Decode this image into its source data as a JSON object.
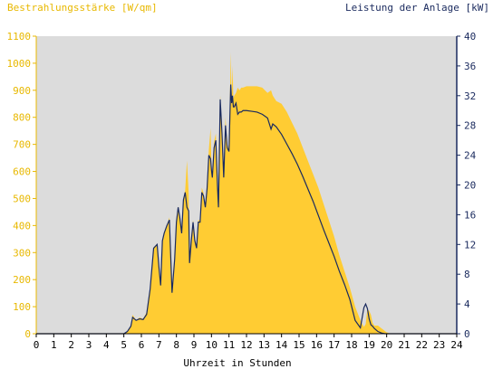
{
  "chart_data": {
    "type": "area",
    "title_left": "Bestrahlungsstärke [W/qm]",
    "title_right": "Leistung der Anlage [kW]",
    "xlabel": "Uhrzeit in Stunden",
    "x_ticks": [
      "0",
      "1",
      "2",
      "3",
      "4",
      "5",
      "6",
      "7",
      "8",
      "9",
      "10",
      "11",
      "12",
      "13",
      "14",
      "15",
      "16",
      "17",
      "18",
      "19",
      "20",
      "21",
      "22",
      "23",
      "24"
    ],
    "y_left_ticks": [
      "0",
      "100",
      "200",
      "300",
      "400",
      "500",
      "600",
      "700",
      "800",
      "900",
      "1000",
      "1100"
    ],
    "y_right_ticks": [
      "0",
      "4",
      "8",
      "12",
      "16",
      "20",
      "24",
      "28",
      "32",
      "36",
      "40"
    ],
    "xlim": [
      0,
      24
    ],
    "ylim_left": [
      0,
      1100
    ],
    "ylim_right": [
      0,
      40
    ],
    "colors": {
      "irradiance": "#ffcc33",
      "power": "#1a2a5e",
      "plot_bg": "#dcdcdc",
      "left_axis_text": "#e8b800",
      "right_axis_text": "#1a2a5e"
    },
    "series": [
      {
        "axis": "left",
        "x": [
          0,
          5.0,
          5.2,
          5.4,
          5.5,
          5.7,
          5.9,
          6.1,
          6.3,
          6.5,
          6.7,
          6.9,
          7.0,
          7.1,
          7.2,
          7.3,
          7.45,
          7.6,
          7.75,
          7.9,
          8.0,
          8.1,
          8.2,
          8.3,
          8.4,
          8.5,
          8.6,
          8.7,
          8.75,
          8.85,
          8.95,
          9.05,
          9.15,
          9.25,
          9.35,
          9.45,
          9.55,
          9.65,
          9.75,
          9.85,
          9.95,
          10.0,
          10.05,
          10.15,
          10.25,
          10.35,
          10.4,
          10.5,
          10.6,
          10.7,
          10.8,
          10.9,
          11.0,
          11.05,
          11.1,
          11.15,
          11.2,
          11.25,
          11.3,
          11.4,
          11.5,
          11.6,
          11.7,
          11.8,
          12.0,
          12.3,
          12.6,
          12.9,
          13.2,
          13.4,
          13.5,
          13.7,
          14.0,
          14.3,
          14.6,
          14.9,
          15.2,
          15.5,
          15.8,
          16.1,
          16.4,
          16.7,
          17.0,
          17.3,
          17.6,
          17.9,
          18.2,
          18.5,
          18.7,
          18.8,
          18.9,
          19.0,
          19.1,
          19.2,
          19.3,
          19.5,
          19.7,
          19.9,
          20.0,
          20.1,
          20.2,
          20.3,
          20.5,
          21,
          24
        ],
        "y": [
          0,
          0,
          10,
          30,
          70,
          50,
          60,
          55,
          80,
          170,
          320,
          330,
          250,
          180,
          340,
          370,
          400,
          430,
          150,
          280,
          420,
          470,
          430,
          380,
          500,
          530,
          640,
          520,
          270,
          360,
          420,
          360,
          320,
          420,
          420,
          540,
          520,
          470,
          560,
          680,
          760,
          620,
          580,
          710,
          740,
          550,
          480,
          880,
          760,
          590,
          800,
          700,
          680,
          850,
          1040,
          880,
          990,
          870,
          880,
          890,
          910,
          900,
          910,
          910,
          915,
          915,
          915,
          910,
          890,
          900,
          880,
          860,
          850,
          820,
          780,
          740,
          690,
          640,
          590,
          540,
          480,
          420,
          360,
          290,
          230,
          170,
          100,
          50,
          25,
          35,
          90,
          85,
          70,
          40,
          30,
          30,
          20,
          10,
          5,
          3,
          0,
          0,
          0,
          0,
          0
        ],
        "name": ""
      },
      {
        "axis": "right",
        "x": [
          0,
          5.0,
          5.2,
          5.4,
          5.5,
          5.7,
          5.9,
          6.1,
          6.3,
          6.5,
          6.7,
          6.9,
          7.0,
          7.1,
          7.2,
          7.3,
          7.45,
          7.6,
          7.75,
          7.9,
          8.0,
          8.1,
          8.2,
          8.3,
          8.4,
          8.5,
          8.6,
          8.7,
          8.75,
          8.85,
          8.95,
          9.05,
          9.15,
          9.25,
          9.35,
          9.45,
          9.55,
          9.65,
          9.75,
          9.85,
          9.95,
          10.0,
          10.05,
          10.15,
          10.25,
          10.35,
          10.4,
          10.5,
          10.6,
          10.7,
          10.8,
          10.9,
          11.0,
          11.05,
          11.1,
          11.15,
          11.2,
          11.25,
          11.3,
          11.4,
          11.5,
          11.6,
          11.7,
          11.8,
          12.0,
          12.3,
          12.6,
          12.9,
          13.2,
          13.4,
          13.5,
          13.7,
          14.0,
          14.3,
          14.6,
          14.9,
          15.2,
          15.5,
          15.8,
          16.1,
          16.4,
          16.7,
          17.0,
          17.3,
          17.6,
          17.9,
          18.2,
          18.5,
          18.7,
          18.8,
          18.9,
          19.0,
          19.1,
          19.2,
          19.3,
          19.5,
          19.7,
          19.9,
          20.0,
          20.1,
          20.2,
          20.3,
          20.5,
          21,
          24
        ],
        "y": [
          0,
          0,
          0.3,
          1.0,
          2.2,
          1.8,
          2.0,
          1.9,
          2.6,
          6.0,
          11.5,
          12.0,
          9.0,
          6.5,
          12.5,
          13.5,
          14.5,
          15.3,
          5.5,
          10.0,
          15.0,
          17.0,
          15.5,
          13.5,
          18.0,
          19.0,
          17.0,
          16.5,
          9.5,
          12.5,
          15.0,
          12.5,
          11.5,
          15.0,
          15.0,
          19.0,
          18.5,
          17.0,
          19.5,
          24.0,
          23.5,
          22.0,
          21.0,
          25.0,
          26.0,
          19.5,
          17.0,
          31.5,
          27.0,
          21.0,
          28.0,
          25.0,
          24.5,
          29.0,
          33.5,
          31.0,
          32.0,
          30.5,
          30.5,
          31.0,
          29.5,
          29.8,
          29.8,
          30.0,
          30.0,
          29.9,
          29.8,
          29.5,
          29.0,
          27.5,
          28.2,
          27.8,
          26.8,
          25.5,
          24.2,
          22.8,
          21.2,
          19.5,
          17.8,
          15.9,
          14.0,
          12.2,
          10.4,
          8.4,
          6.6,
          4.6,
          1.8,
          0.8,
          3.5,
          4.0,
          3.4,
          2.0,
          1.2,
          1.0,
          0.7,
          0.3,
          0.1,
          0,
          0,
          0,
          0,
          0,
          0,
          0,
          0
        ],
        "name": ""
      }
    ]
  }
}
